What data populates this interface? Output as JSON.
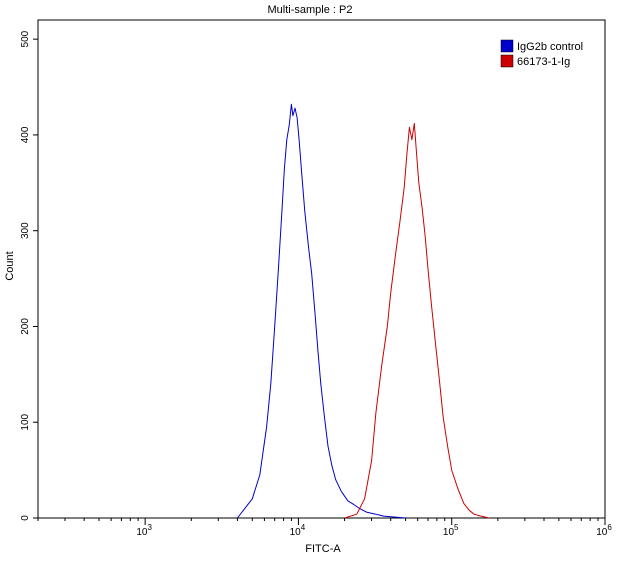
{
  "chart_data": {
    "type": "line",
    "title": "Multi-sample : P2",
    "xlabel": "FITC-A",
    "ylabel": "Count",
    "x_scale": "log",
    "xlim": [
      200,
      1000000
    ],
    "ylim": [
      0,
      520
    ],
    "x_ticks": [
      {
        "value": 1000,
        "base": "10",
        "exp": "3"
      },
      {
        "value": 10000,
        "base": "10",
        "exp": "4"
      },
      {
        "value": 100000,
        "base": "10",
        "exp": "5"
      },
      {
        "value": 1000000,
        "base": "10",
        "exp": "6"
      }
    ],
    "y_ticks": [
      "0",
      "100",
      "200",
      "300",
      "400",
      "500"
    ],
    "grid": false,
    "legend_position": "top-right",
    "series": [
      {
        "name": "IgG2b control",
        "color": "#0000cc",
        "x": [
          4000,
          5000,
          5600,
          6200,
          6600,
          7000,
          7400,
          7800,
          8100,
          8400,
          8700,
          9000,
          9200,
          9500,
          9800,
          10100,
          10500,
          11000,
          11600,
          12200,
          12800,
          13400,
          14000,
          14800,
          15600,
          16500,
          17500,
          19000,
          21000,
          23000,
          25000,
          28000,
          32000,
          36000,
          42000,
          50000
        ],
        "y": [
          0,
          20,
          45,
          95,
          140,
          200,
          260,
          320,
          365,
          395,
          410,
          432,
          420,
          428,
          418,
          395,
          360,
          320,
          285,
          255,
          215,
          175,
          140,
          105,
          75,
          55,
          40,
          28,
          18,
          14,
          10,
          6,
          4,
          2,
          1,
          0
        ]
      },
      {
        "name": "66173-1-Ig",
        "color": "#cc0000",
        "x": [
          20000,
          24000,
          27000,
          30000,
          32000,
          35000,
          38000,
          40000,
          43000,
          46000,
          49000,
          51000,
          53000,
          55000,
          57000,
          59000,
          61000,
          64000,
          67000,
          70000,
          74000,
          78000,
          83000,
          88000,
          94000,
          100000,
          110000,
          120000,
          130000,
          140000,
          155000,
          175000
        ],
        "y": [
          0,
          4,
          20,
          60,
          110,
          160,
          200,
          235,
          275,
          310,
          345,
          380,
          408,
          395,
          412,
          380,
          350,
          325,
          295,
          260,
          220,
          185,
          145,
          105,
          75,
          50,
          30,
          15,
          8,
          4,
          2,
          0
        ]
      }
    ]
  }
}
